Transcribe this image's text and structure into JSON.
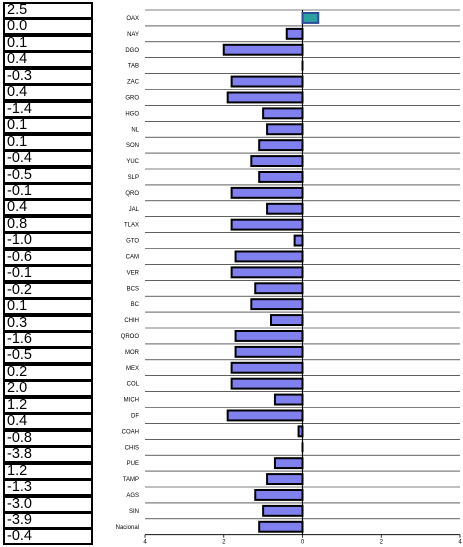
{
  "value_column": {
    "values": [
      "2.5",
      "0.0",
      "0.1",
      "0.4",
      "-0.3",
      "0.4",
      "-1.4",
      "0.1",
      "0.1",
      "-0.4",
      "-0.5",
      "-0.1",
      "0.4",
      "0.8",
      "-1.0",
      "-0.6",
      "-0.1",
      "-0.2",
      "0.1",
      "0.3",
      "-1.6",
      "-0.5",
      "0.2",
      "2.0",
      "1.2",
      "0.4",
      "-0.8",
      "-3.8",
      "1.2",
      "-1.3",
      "-3.0",
      "-3.9",
      "-0.4"
    ]
  },
  "chart_data": {
    "type": "bar",
    "orientation": "horizontal",
    "categories": [
      "OAX",
      "NAY",
      "DGO",
      "TAB",
      "ZAC",
      "GRO",
      "HGO",
      "NL",
      "SON",
      "YUC",
      "SLP",
      "QRO",
      "JAL",
      "TLAX",
      "GTO",
      "CAM",
      "VER",
      "BCS",
      "BC",
      "CHIH",
      "QROO",
      "MOR",
      "MEX",
      "COL",
      "MICH",
      "DF",
      "COAH",
      "CHIS",
      "PUE",
      "TAMP",
      "AGS",
      "SIN",
      "Nacional"
    ],
    "values": [
      0.4,
      -0.4,
      -2.0,
      0.0,
      -1.8,
      -1.9,
      -1.0,
      -0.9,
      -1.1,
      -1.3,
      -1.1,
      -1.8,
      -0.9,
      -1.8,
      -0.2,
      -1.7,
      -1.8,
      -1.2,
      -1.3,
      -0.8,
      -1.7,
      -1.7,
      -1.8,
      -1.8,
      -0.7,
      -1.9,
      -0.1,
      0.0,
      -0.7,
      -0.9,
      -1.2,
      -1.0,
      -1.1
    ],
    "highlight_category": "OAX",
    "xlim": [
      -4,
      4
    ],
    "x_ticks": [
      -4,
      -2,
      0,
      2,
      4
    ],
    "x_tick_labels": [
      "4",
      "2",
      "0",
      "2",
      "4"
    ],
    "grid": true,
    "colors": {
      "bar_fill": "#8080ee",
      "bar_edge": "#000000",
      "highlight_fill": "#2aa0a0",
      "highlight_edge": "#2e4a9a",
      "grid": "#000000"
    }
  }
}
